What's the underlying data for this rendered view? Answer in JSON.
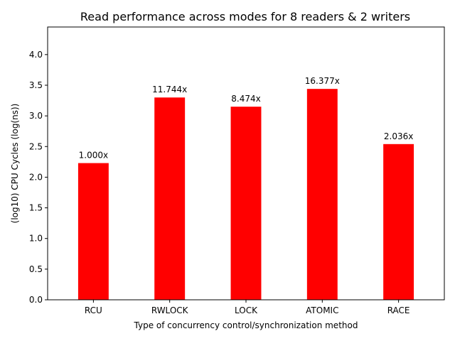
{
  "chart_data": {
    "type": "bar",
    "title": "Read performance across modes for 8 readers & 2 writers",
    "xlabel": "Type of concurrency control/synchronization method",
    "ylabel": "(log10) CPU Cycles (log(ns))",
    "categories": [
      "RCU",
      "RWLOCK",
      "LOCK",
      "ATOMIC",
      "RACE"
    ],
    "values": [
      2.23,
      3.3,
      3.15,
      3.44,
      2.54
    ],
    "data_labels": [
      "1.000x",
      "11.744x",
      "8.474x",
      "16.377x",
      "2.036x"
    ],
    "ylim": [
      0,
      4.45
    ],
    "yticks": [
      "0.0",
      "0.5",
      "1.0",
      "1.5",
      "2.0",
      "2.5",
      "3.0",
      "3.5",
      "4.0"
    ],
    "bar_color": "#ff0000",
    "grid": false,
    "legend": "none"
  }
}
